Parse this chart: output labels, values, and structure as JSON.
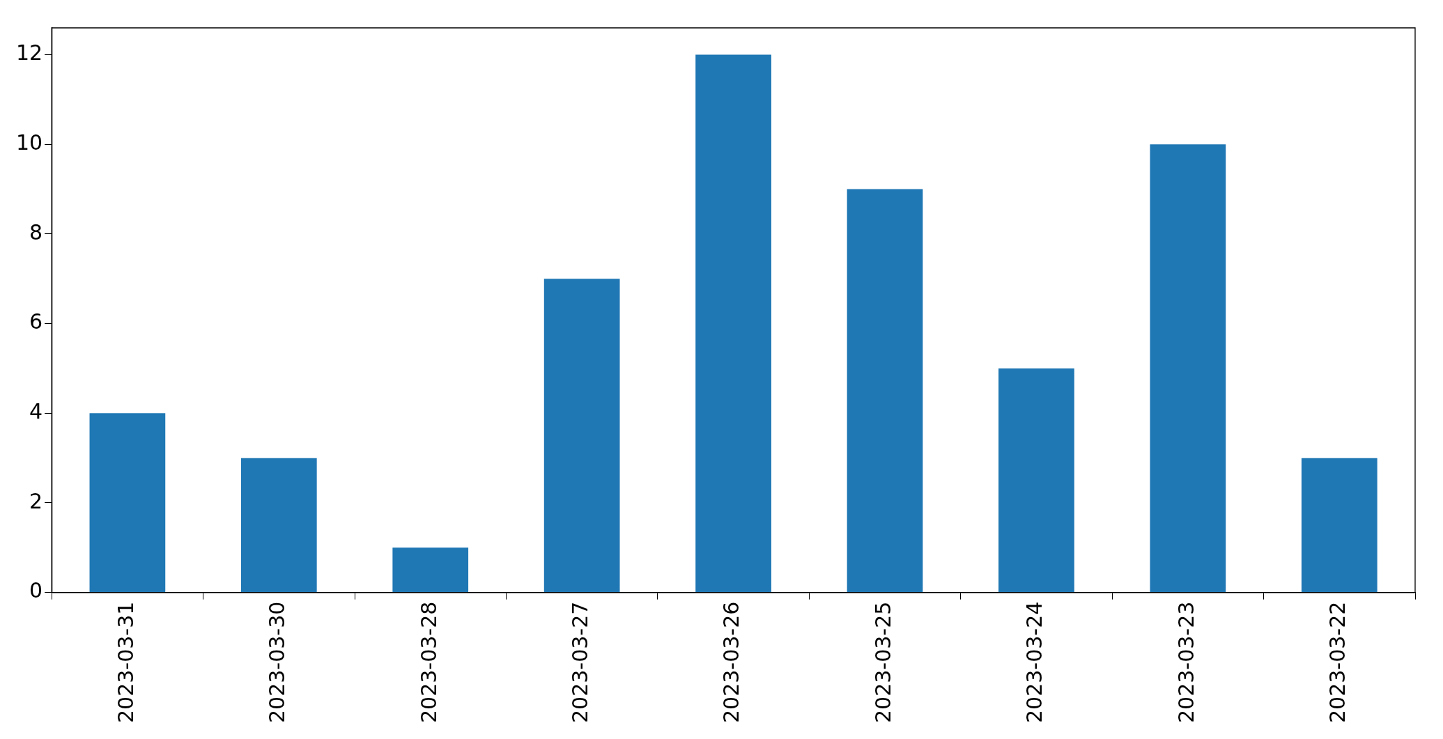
{
  "chart_data": {
    "type": "bar",
    "categories": [
      "2023-03-31",
      "2023-03-30",
      "2023-03-28",
      "2023-03-27",
      "2023-03-26",
      "2023-03-25",
      "2023-03-24",
      "2023-03-23",
      "2023-03-22"
    ],
    "values": [
      4,
      3,
      1,
      7,
      12,
      9,
      5,
      10,
      3
    ],
    "color": "#1f77b4",
    "ylim": [
      0,
      12.6
    ],
    "yticks": [
      0,
      2,
      4,
      6,
      8,
      10,
      12
    ],
    "grid": false,
    "legend": false
  }
}
